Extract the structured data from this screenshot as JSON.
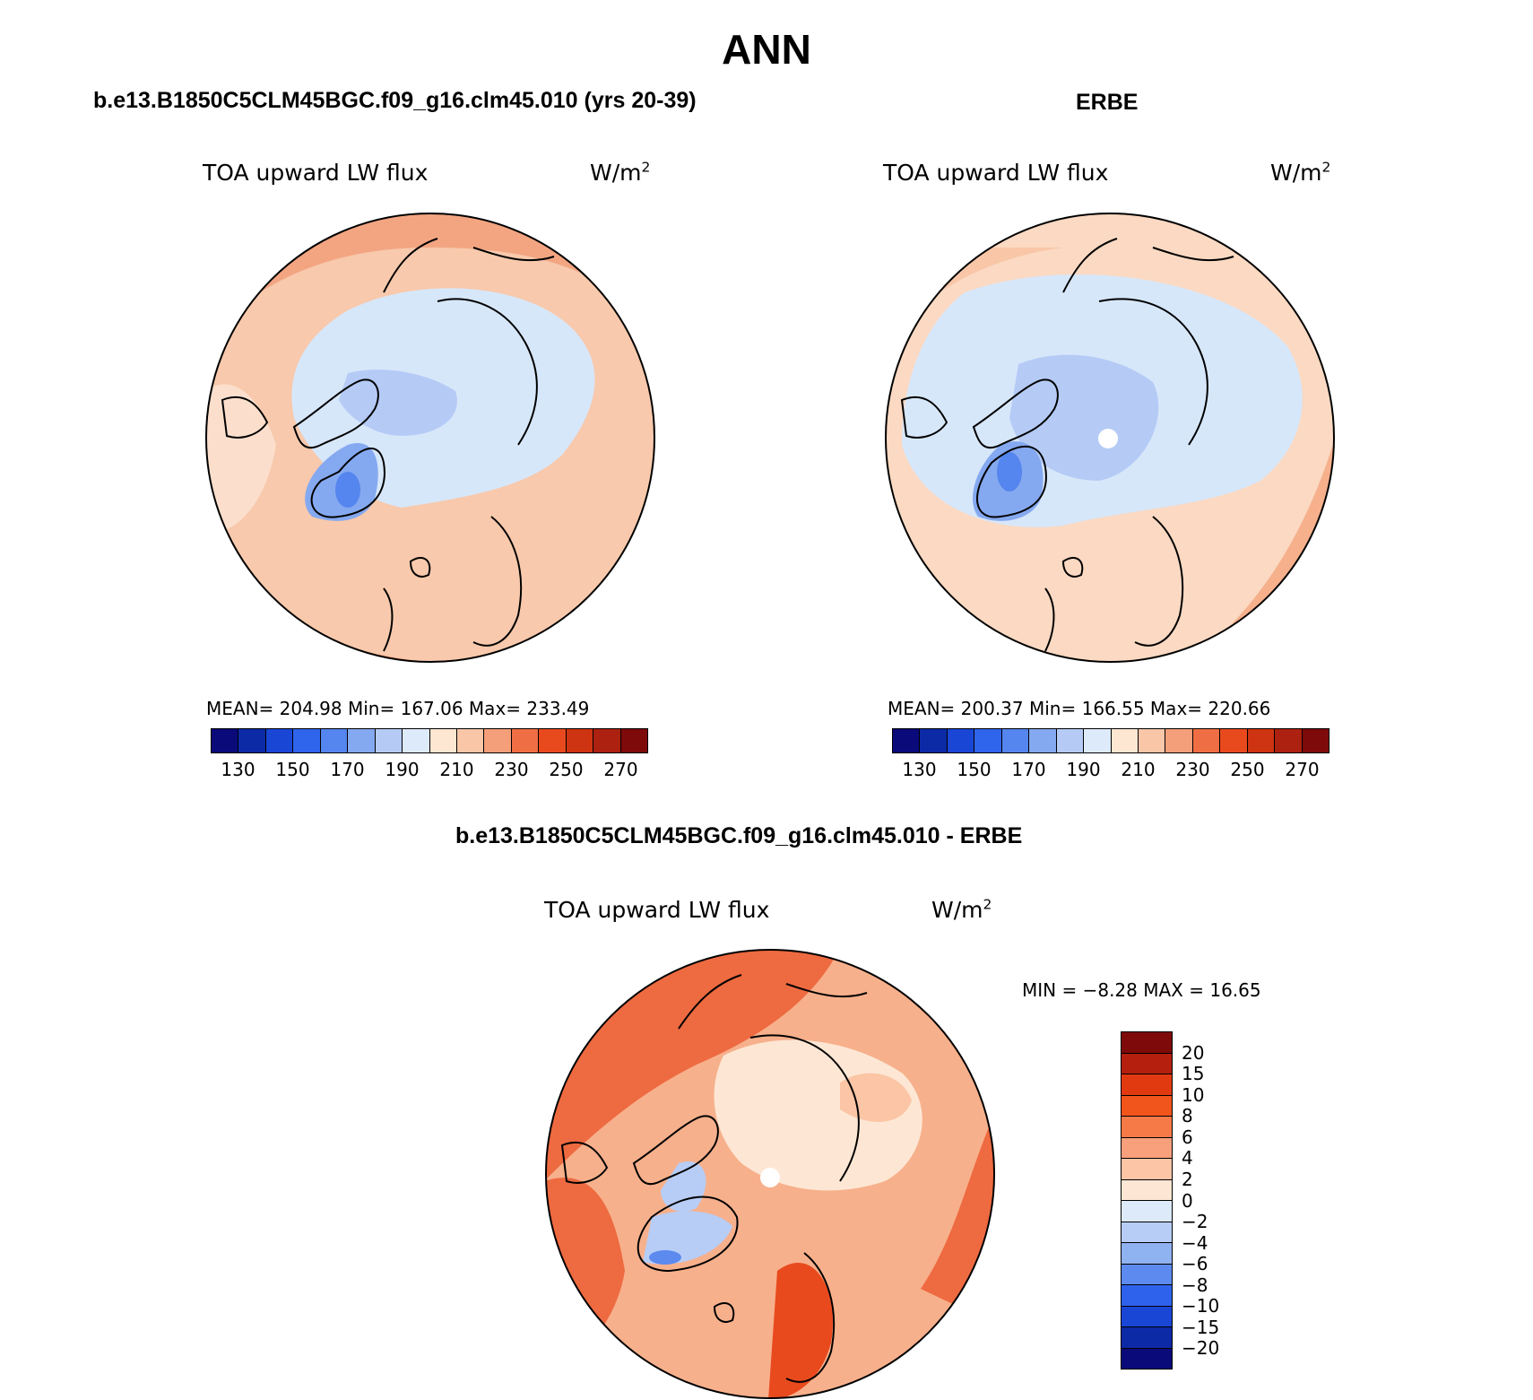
{
  "title": "ANN",
  "panels": [
    {
      "id": "model",
      "subtitle": "b.e13.B1850C5CLM45BGC.f09_g16.clm45.010 (yrs 20-39)",
      "variable": "TOA upward LW flux",
      "units": "W/m",
      "units_sup": "2",
      "stats": "MEAN= 204.98   Min= 167.06   Max= 233.49"
    },
    {
      "id": "obs",
      "subtitle": "ERBE",
      "variable": "TOA upward LW flux",
      "units": "W/m",
      "units_sup": "2",
      "stats": "MEAN= 200.37   Min= 166.55   Max= 220.66"
    },
    {
      "id": "diff",
      "subtitle": "b.e13.B1850C5CLM45BGC.f09_g16.clm45.010 - ERBE",
      "variable": "TOA upward LW flux",
      "units": "W/m",
      "units_sup": "2",
      "stats": "MIN =   −8.28 MAX =   16.65"
    }
  ],
  "abs_colorbar": {
    "colors": [
      "#0a0a7a",
      "#0c2aa6",
      "#1a46d6",
      "#2f64ec",
      "#5585ee",
      "#85a9f0",
      "#b5cbf6",
      "#ddeafa",
      "#fde6d2",
      "#f9c6a8",
      "#f59f7a",
      "#f06e44",
      "#e84a1e",
      "#cf3412",
      "#ad2110",
      "#7e0a0a"
    ],
    "labels": [
      "130",
      "150",
      "170",
      "190",
      "210",
      "230",
      "250",
      "270"
    ]
  },
  "diff_colorbar": {
    "colors": [
      "#7e0a0a",
      "#b5200e",
      "#e23a10",
      "#f1551c",
      "#f57a48",
      "#f8a07c",
      "#fbc5a6",
      "#fde7d4",
      "#dceafa",
      "#b7cdf6",
      "#8fb2f1",
      "#5c8aee",
      "#2f62ec",
      "#1a46d6",
      "#0c2aa6",
      "#0a0a7a"
    ],
    "labels": [
      "20",
      "15",
      "10",
      "8",
      "6",
      "4",
      "2",
      "0",
      "−2",
      "−4",
      "−6",
      "−8",
      "−10",
      "−15",
      "−20"
    ]
  },
  "map_colors": {
    "model": {
      "base": "#f8c9ac",
      "ring": "#f3a582",
      "ocean_ice": "#d7e7fa",
      "mid": "#b5cbf6",
      "deep": "#85a9f0",
      "core": "#5585ee"
    },
    "obs": {
      "base": "#fbd9c2",
      "ring": "#f6b08c",
      "ocean_ice": "#d7e7fa",
      "mid": "#b5cbf6",
      "deep": "#85a9f0",
      "core": "#5585ee"
    },
    "diff": {
      "base": "#f7b08c",
      "ring": "#ee6a40",
      "ocean_ice": "#fde7d4",
      "mid": "#fbc5a6",
      "deep": "#b7cdf6",
      "core": "#5c8aee"
    }
  },
  "map_icons": [
    "coastline-icon",
    "pole-hole-icon"
  ]
}
